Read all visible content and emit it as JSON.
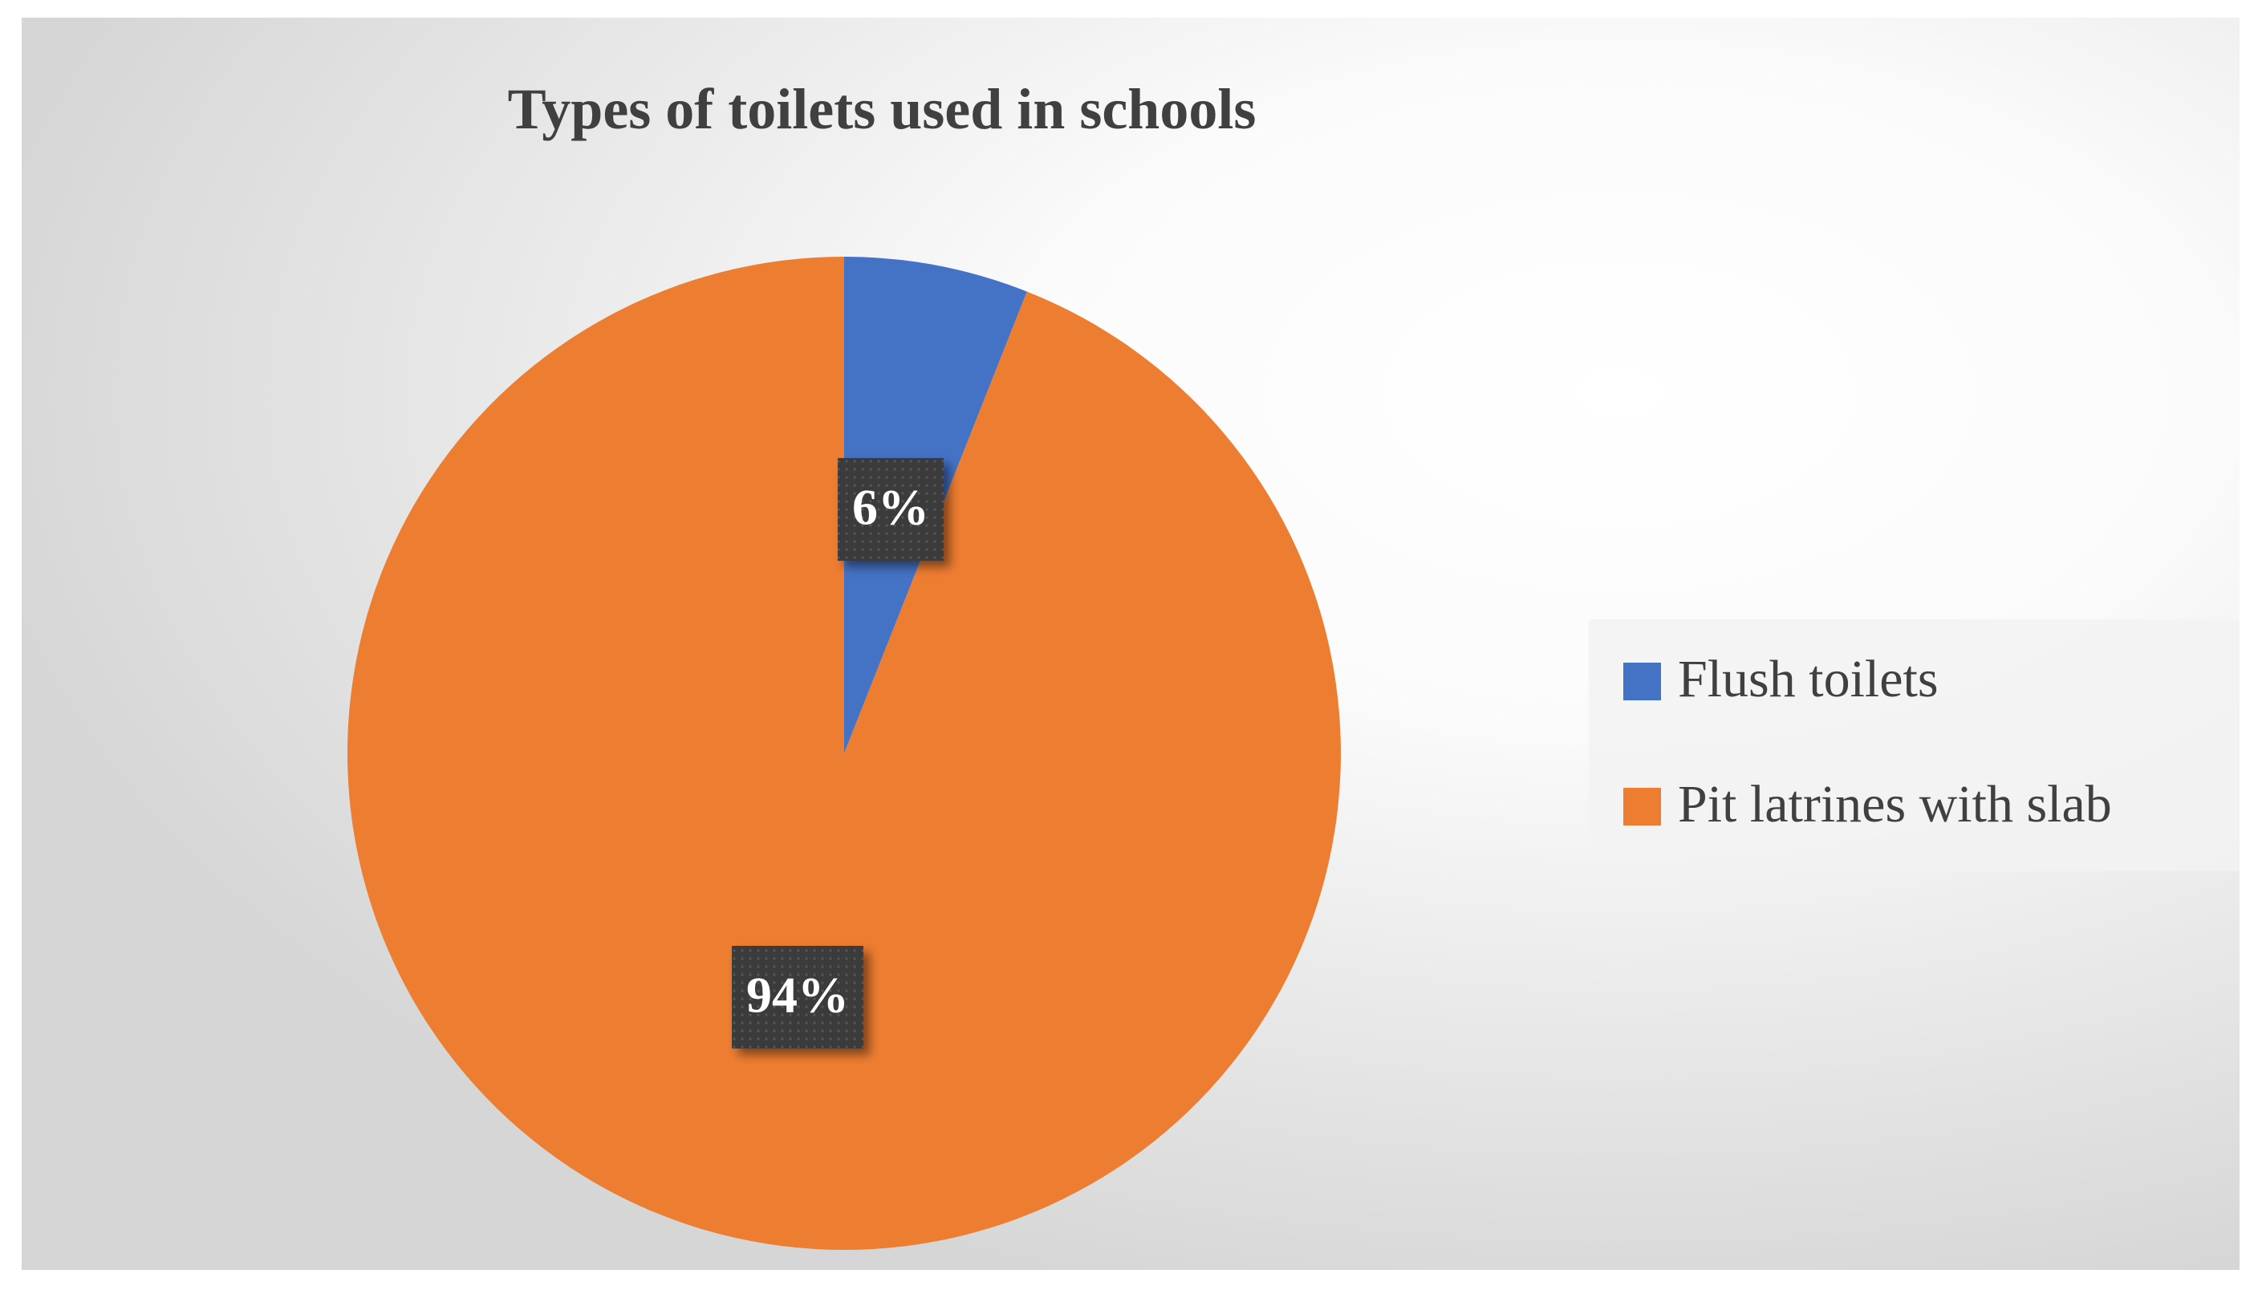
{
  "chart_data": {
    "type": "pie",
    "title": "Types of toilets used in schools",
    "categories": [
      "Flush toilets",
      "Pit latrines with slab"
    ],
    "values": [
      6,
      94
    ],
    "value_labels": [
      "6%",
      "94%"
    ],
    "colors": [
      "#4472c4",
      "#ed7d31"
    ],
    "legend": "right"
  }
}
